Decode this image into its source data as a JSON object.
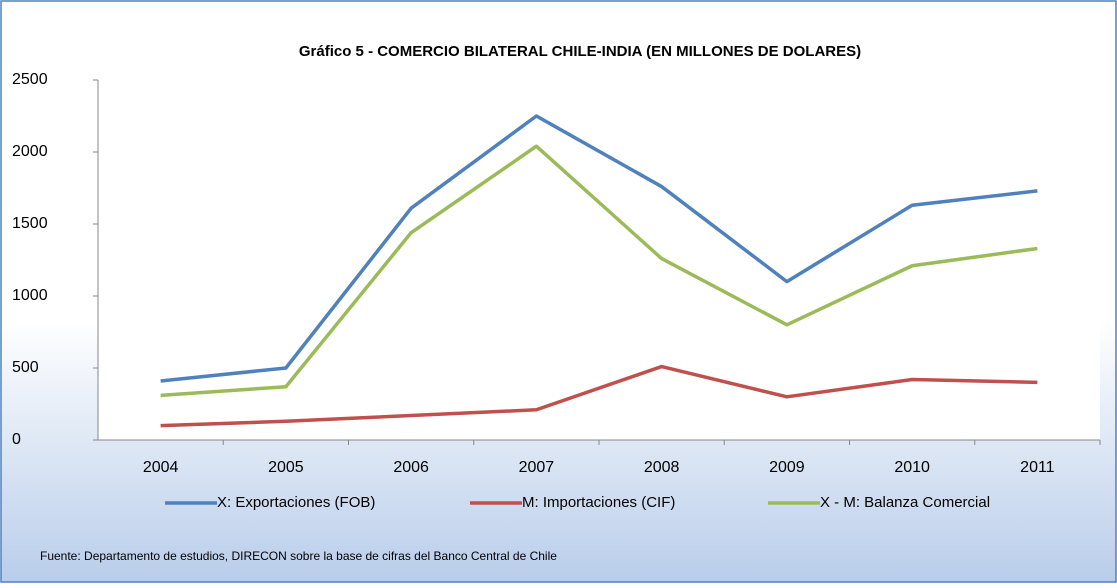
{
  "chart_data": {
    "type": "line",
    "title": "Gráfico 5 - COMERCIO BILATERAL CHILE-INDIA (EN MILLONES DE DOLARES)",
    "categories": [
      "2004",
      "2005",
      "2006",
      "2007",
      "2008",
      "2009",
      "2010",
      "2011"
    ],
    "series": [
      {
        "name": "X: Exportaciones (FOB)",
        "color": "#4f81bd",
        "values": [
          410,
          500,
          1610,
          2250,
          1760,
          1100,
          1630,
          1730
        ]
      },
      {
        "name": "M: Importaciones (CIF)",
        "color": "#c0504d",
        "values": [
          100,
          130,
          170,
          210,
          510,
          300,
          420,
          400
        ]
      },
      {
        "name": "X - M: Balanza Comercial",
        "color": "#9bbb59",
        "values": [
          310,
          370,
          1440,
          2040,
          1260,
          800,
          1210,
          1330
        ]
      }
    ],
    "ylim": [
      0,
      2500
    ],
    "yticks": [
      0,
      500,
      1000,
      1500,
      2000,
      2500
    ],
    "legend": "bottom",
    "source": "Fuente: Departamento de estudios, DIRECON sobre la base de cifras del Banco Central de Chile"
  }
}
